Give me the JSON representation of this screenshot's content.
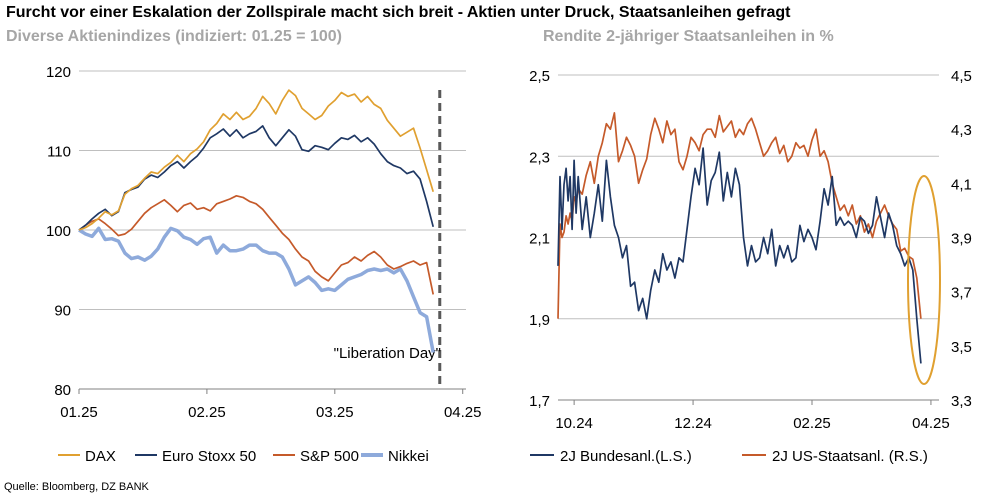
{
  "title": "Furcht vor einer Eskalation der Zollspirale macht sich breit - Aktien unter Druck, Staatsanleihen gefragt",
  "source": "Quelle: Bloomberg, DZ BANK",
  "chart_data": [
    {
      "type": "line",
      "title": "Diverse Aktienindizes (indiziert: 01.25 = 100)",
      "x_ticks": [
        "01.25",
        "02.25",
        "03.25",
        "04.25"
      ],
      "y_ticks": [
        "80",
        "90",
        "100",
        "110",
        "120"
      ],
      "ylim": [
        80,
        120
      ],
      "grid": true,
      "legend_position": "bottom",
      "annotation": "\"Liberation Day\"",
      "series": [
        {
          "name": "DAX",
          "color": "#e0a030",
          "x": [
            0,
            2,
            4,
            6,
            8,
            10,
            12,
            14,
            16,
            18,
            20,
            22,
            24,
            26,
            28,
            30,
            32,
            34,
            36,
            38,
            40,
            42,
            44,
            46,
            48,
            50,
            52,
            54,
            56,
            58,
            60,
            62,
            64,
            66,
            68,
            70,
            72,
            74,
            76,
            78,
            80,
            82,
            84,
            86,
            88,
            90,
            92,
            94,
            96,
            98,
            100,
            102,
            104,
            106,
            108
          ],
          "values": [
            100,
            100.3,
            100.8,
            101.5,
            102.3,
            101.9,
            102.4,
            104.5,
            105.2,
            105.6,
            106.5,
            107.3,
            107.1,
            107.9,
            108.5,
            109.4,
            108.6,
            109.6,
            110.2,
            111.1,
            112.6,
            113.4,
            114.6,
            113.9,
            114.8,
            113.9,
            114.3,
            115.3,
            116.8,
            115.9,
            114.6,
            116.3,
            117.6,
            116.9,
            115.3,
            114.6,
            113.9,
            114.4,
            115.6,
            116.3,
            117.3,
            116.8,
            117.1,
            116.1,
            116.8,
            115.8,
            115.3,
            113.8,
            112.8,
            111.8,
            112.3,
            112.8,
            110.3,
            107.6,
            104.8
          ]
        },
        {
          "name": "Euro Stoxx 50",
          "color": "#1f3864",
          "x": [
            0,
            2,
            4,
            6,
            8,
            10,
            12,
            14,
            16,
            18,
            20,
            22,
            24,
            26,
            28,
            30,
            32,
            34,
            36,
            38,
            40,
            42,
            44,
            46,
            48,
            50,
            52,
            54,
            56,
            58,
            60,
            62,
            64,
            66,
            68,
            70,
            72,
            74,
            76,
            78,
            80,
            82,
            84,
            86,
            88,
            90,
            92,
            94,
            96,
            98,
            100,
            102,
            104,
            106,
            108
          ],
          "values": [
            100,
            100.6,
            101.4,
            102.1,
            102.6,
            101.8,
            102.3,
            104.7,
            105.1,
            105.4,
            106.4,
            106.9,
            106.6,
            107.3,
            108.1,
            108.6,
            107.8,
            108.6,
            109.3,
            110.3,
            111.6,
            112.1,
            112.7,
            111.8,
            112.6,
            111.6,
            112.1,
            112.4,
            113.1,
            111.6,
            110.6,
            111.6,
            112.6,
            111.8,
            110.1,
            109.9,
            110.6,
            110.4,
            110.1,
            110.9,
            111.6,
            111.4,
            111.9,
            111.1,
            111.6,
            110.8,
            109.6,
            108.6,
            108.1,
            107.8,
            107.1,
            107.4,
            106.4,
            103.6,
            100.4
          ]
        },
        {
          "name": "S&P 500",
          "color": "#c55a2a",
          "x": [
            0,
            2,
            4,
            6,
            8,
            10,
            12,
            14,
            16,
            18,
            20,
            22,
            24,
            26,
            28,
            30,
            32,
            34,
            36,
            38,
            40,
            42,
            44,
            46,
            48,
            50,
            52,
            54,
            56,
            58,
            60,
            62,
            64,
            66,
            68,
            70,
            72,
            74,
            76,
            78,
            80,
            82,
            84,
            86,
            88,
            90,
            92,
            94,
            96,
            98,
            100,
            102,
            104,
            106,
            108
          ],
          "values": [
            100,
            100.6,
            101.1,
            101.4,
            100.8,
            100.1,
            99.3,
            99.5,
            100.1,
            101.1,
            102.1,
            102.8,
            103.3,
            103.8,
            103.1,
            102.3,
            103.1,
            103.4,
            102.6,
            102.8,
            102.4,
            103.3,
            103.6,
            103.9,
            104.3,
            104.1,
            103.6,
            103.3,
            102.6,
            101.6,
            100.6,
            99.6,
            98.8,
            97.6,
            96.6,
            96.1,
            94.8,
            94.1,
            93.6,
            94.6,
            95.6,
            95.9,
            96.6,
            96.1,
            96.8,
            97.3,
            96.6,
            95.6,
            95.1,
            95.4,
            95.8,
            96.1,
            95.6,
            95.9,
            91.9
          ]
        },
        {
          "name": "Nikkei",
          "color": "#8eaadb",
          "x": [
            0,
            2,
            4,
            6,
            8,
            10,
            12,
            14,
            16,
            18,
            20,
            22,
            24,
            26,
            28,
            30,
            32,
            34,
            36,
            38,
            40,
            42,
            44,
            46,
            48,
            50,
            52,
            54,
            56,
            58,
            60,
            62,
            64,
            66,
            68,
            70,
            72,
            74,
            76,
            78,
            80,
            82,
            84,
            86,
            88,
            90,
            92,
            94,
            96,
            98,
            100,
            102,
            104,
            106,
            108
          ],
          "values": [
            100,
            99.5,
            99.2,
            100.2,
            98.8,
            98.9,
            98.6,
            97.1,
            96.4,
            96.6,
            96.2,
            96.7,
            97.6,
            99.1,
            100.2,
            99.9,
            99.1,
            98.8,
            98.2,
            98.9,
            99.1,
            97.1,
            98.1,
            97.4,
            97.4,
            97.6,
            98.1,
            98.1,
            97.4,
            97.1,
            97.1,
            96.6,
            95.1,
            93.1,
            93.6,
            94.1,
            93.4,
            92.4,
            92.6,
            92.4,
            93.1,
            93.8,
            94.1,
            94.4,
            94.9,
            95.1,
            94.9,
            95.1,
            94.6,
            95.1,
            93.6,
            91.6,
            89.6,
            89.1,
            84.6
          ]
        }
      ]
    },
    {
      "type": "line",
      "title": "Rendite 2-jähriger Staatsanleihen in %",
      "x_ticks": [
        "10.24",
        "12.24",
        "02.25",
        "04.25"
      ],
      "y_ticks_left": [
        "1,7",
        "1,9",
        "2,1",
        "2,3",
        "2,5"
      ],
      "y_ticks_right": [
        "3,3",
        "3,5",
        "3,7",
        "3,9",
        "4,1",
        "4,3",
        "4,5"
      ],
      "ylim_left": [
        1.7,
        2.5
      ],
      "ylim_right": [
        3.3,
        4.5
      ],
      "grid": true,
      "legend_position": "bottom",
      "series": [
        {
          "name": "2J Bundesanl.(L.S.)",
          "color": "#1f3864",
          "axis": "left",
          "x": [
            0,
            1,
            2,
            3,
            4,
            5,
            6,
            7,
            8,
            9,
            10,
            12,
            14,
            16,
            18,
            20,
            22,
            24,
            26,
            28,
            30,
            32,
            34,
            36,
            38,
            40,
            42,
            44,
            46,
            48,
            50,
            52,
            54,
            56,
            58,
            60,
            62,
            64,
            66,
            68,
            70,
            72,
            74,
            76,
            78,
            80,
            82,
            84,
            86,
            88,
            90,
            92,
            94,
            96,
            98,
            100,
            102,
            104,
            106,
            108,
            110,
            112,
            114,
            116,
            118,
            120,
            122,
            124,
            126,
            128,
            130,
            132,
            134,
            136,
            138,
            140,
            142,
            144,
            146,
            148,
            150,
            152,
            154,
            156,
            158,
            160,
            162,
            164,
            166,
            168,
            170,
            172,
            174,
            176,
            178,
            180
          ],
          "values": [
            2.03,
            2.25,
            2.12,
            2.23,
            2.27,
            2.19,
            2.25,
            2.12,
            2.29,
            2.16,
            2.25,
            2.12,
            2.2,
            2.1,
            2.16,
            2.23,
            2.14,
            2.29,
            2.2,
            2.13,
            2.1,
            2.05,
            2.08,
            1.98,
            1.99,
            1.92,
            1.95,
            1.9,
            1.97,
            2.02,
            1.99,
            2.06,
            2.02,
            2.04,
            2.0,
            2.05,
            2.04,
            2.12,
            2.2,
            2.27,
            2.23,
            2.32,
            2.18,
            2.24,
            2.26,
            2.31,
            2.19,
            2.26,
            2.2,
            2.27,
            2.23,
            2.1,
            2.03,
            2.08,
            2.04,
            2.05,
            2.1,
            2.06,
            2.12,
            2.03,
            2.08,
            2.05,
            2.08,
            2.04,
            2.05,
            2.13,
            2.09,
            2.12,
            2.1,
            2.07,
            2.14,
            2.22,
            2.18,
            2.25,
            2.13,
            2.15,
            2.13,
            2.14,
            2.13,
            2.1,
            2.15,
            2.14,
            2.11,
            2.13,
            2.2,
            2.15,
            2.1,
            2.16,
            2.13,
            2.08,
            2.06,
            2.03,
            2.05,
            2.02,
            1.9,
            1.79
          ]
        },
        {
          "name": "2J US-Staatsanl. (R.S.)",
          "color": "#c55a2a",
          "axis": "right",
          "x": [
            0,
            1,
            2,
            3,
            4,
            5,
            6,
            7,
            8,
            9,
            10,
            12,
            14,
            16,
            18,
            20,
            22,
            24,
            26,
            28,
            30,
            32,
            34,
            36,
            38,
            40,
            42,
            44,
            46,
            48,
            50,
            52,
            54,
            56,
            58,
            60,
            62,
            64,
            66,
            68,
            70,
            72,
            74,
            76,
            78,
            80,
            82,
            84,
            86,
            88,
            90,
            92,
            94,
            96,
            98,
            100,
            102,
            104,
            106,
            108,
            110,
            112,
            114,
            116,
            118,
            120,
            122,
            124,
            126,
            128,
            130,
            132,
            134,
            136,
            138,
            140,
            142,
            144,
            146,
            148,
            150,
            152,
            154,
            156,
            158,
            160,
            162,
            164,
            166,
            168,
            170,
            172,
            174,
            176,
            178,
            180
          ],
          "values": [
            3.6,
            3.95,
            3.9,
            3.92,
            3.98,
            3.95,
            3.99,
            3.96,
            4.05,
            4.03,
            4.08,
            4.06,
            4.13,
            4.18,
            4.1,
            4.2,
            4.25,
            4.32,
            4.3,
            4.36,
            4.18,
            4.22,
            4.27,
            4.24,
            4.2,
            4.1,
            4.15,
            4.19,
            4.28,
            4.34,
            4.3,
            4.25,
            4.33,
            4.28,
            4.3,
            4.18,
            4.15,
            4.2,
            4.27,
            4.25,
            4.22,
            4.28,
            4.3,
            4.3,
            4.27,
            4.35,
            4.29,
            4.31,
            4.33,
            4.27,
            4.3,
            4.28,
            4.32,
            4.34,
            4.3,
            4.25,
            4.2,
            4.22,
            4.25,
            4.27,
            4.21,
            4.24,
            4.18,
            4.2,
            4.25,
            4.23,
            4.24,
            4.2,
            4.26,
            4.3,
            4.2,
            4.22,
            4.18,
            4.1,
            4.05,
            4.0,
            4.02,
            3.98,
            4.02,
            3.95,
            3.98,
            3.92,
            3.95,
            3.9,
            3.96,
            3.99,
            4.02,
            3.98,
            3.95,
            3.93,
            3.85,
            3.86,
            3.83,
            3.82,
            3.75,
            3.6
          ]
        }
      ]
    }
  ]
}
